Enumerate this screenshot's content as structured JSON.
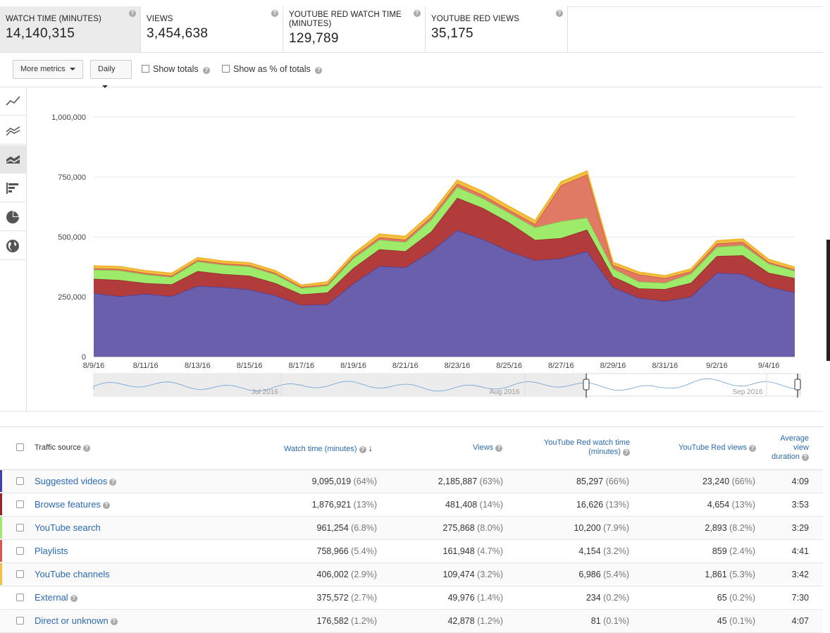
{
  "cards": [
    {
      "title": "WATCH TIME (MINUTES)",
      "value": "14,140,315"
    },
    {
      "title": "VIEWS",
      "value": "3,454,638"
    },
    {
      "title": "YOUTUBE RED WATCH TIME (MINUTES)",
      "value": "129,789"
    },
    {
      "title": "YOUTUBE RED VIEWS",
      "value": "35,175"
    }
  ],
  "toolbar": {
    "more_metrics": "More metrics",
    "interval": "Daily",
    "show_totals": "Show totals",
    "show_pct": "Show as % of totals"
  },
  "colors": {
    "suggested": "#6a5fad",
    "browse": "#b23b3b",
    "search": "#9eea6a",
    "playlists": "#e07a65",
    "channels": "#f2c042",
    "external": "#dddddd",
    "direct": "#dddddd"
  },
  "chart_data": {
    "type": "area",
    "stacked": true,
    "x": [
      "8/9/16",
      "8/10/16",
      "8/11/16",
      "8/12/16",
      "8/13/16",
      "8/14/16",
      "8/15/16",
      "8/16/16",
      "8/17/16",
      "8/18/16",
      "8/19/16",
      "8/20/16",
      "8/21/16",
      "8/22/16",
      "8/23/16",
      "8/24/16",
      "8/25/16",
      "8/26/16",
      "8/27/16",
      "8/28/16",
      "8/29/16",
      "8/30/16",
      "8/31/16",
      "9/1/16",
      "9/2/16",
      "9/3/16",
      "9/4/16",
      "9/5/16"
    ],
    "x_ticks": [
      "8/9/16",
      "8/11/16",
      "8/13/16",
      "8/15/16",
      "8/17/16",
      "8/19/16",
      "8/21/16",
      "8/23/16",
      "8/25/16",
      "8/27/16",
      "8/29/16",
      "8/31/16",
      "9/2/16",
      "9/4/16"
    ],
    "y_ticks": [
      "0",
      "250,000",
      "500,000",
      "750,000",
      "1,000,000"
    ],
    "ylim": [
      0,
      1000000
    ],
    "series": [
      {
        "name": "Suggested videos",
        "values": [
          265000,
          252000,
          262000,
          252000,
          295000,
          290000,
          280000,
          255000,
          215000,
          218000,
          305000,
          378000,
          372000,
          440000,
          528000,
          490000,
          440000,
          402000,
          410000,
          440000,
          290000,
          245000,
          232000,
          250000,
          350000,
          345000,
          292000,
          268000
        ]
      },
      {
        "name": "Browse features",
        "values": [
          60000,
          68000,
          45000,
          50000,
          62000,
          55000,
          58000,
          52000,
          45000,
          50000,
          65000,
          70000,
          68000,
          82000,
          135000,
          130000,
          120000,
          85000,
          85000,
          90000,
          45000,
          40000,
          50000,
          58000,
          70000,
          78000,
          58000,
          60000
        ]
      },
      {
        "name": "YouTube search",
        "values": [
          38000,
          40000,
          36000,
          30000,
          40000,
          38000,
          38000,
          36000,
          26000,
          28000,
          40000,
          40000,
          38000,
          50000,
          45000,
          40000,
          40000,
          52000,
          70000,
          50000,
          33000,
          28000,
          26000,
          38000,
          38000,
          42000,
          38000,
          30000
        ]
      },
      {
        "name": "Playlists",
        "values": [
          6000,
          6000,
          6000,
          6000,
          6000,
          6000,
          6000,
          6000,
          5000,
          6000,
          8000,
          10000,
          10000,
          12000,
          14000,
          14000,
          12000,
          14000,
          150000,
          180000,
          14000,
          30000,
          20000,
          10000,
          14000,
          14000,
          6000,
          6000
        ]
      },
      {
        "name": "YouTube channels",
        "values": [
          10000,
          10000,
          10000,
          10000,
          10000,
          10000,
          10000,
          10000,
          8000,
          10000,
          12000,
          14000,
          14000,
          14000,
          15000,
          15000,
          15000,
          15000,
          15000,
          15000,
          12000,
          10000,
          10000,
          10000,
          12000,
          12000,
          12000,
          10000
        ]
      }
    ],
    "navigator_labels": [
      "Jul 2016",
      "Aug 2016",
      "Sep 2016"
    ]
  },
  "table": {
    "headers": {
      "source": "Traffic source",
      "watch": "Watch time (minutes)",
      "views": "Views",
      "red_watch": "YouTube Red watch time (minutes)",
      "red_views": "YouTube Red views",
      "avg": "Average view duration"
    },
    "rows": [
      {
        "name": "Suggested videos",
        "color": "#3f3fb0",
        "watch": "9,095,019",
        "watch_pct": "(64%)",
        "views": "2,185,887",
        "views_pct": "(63%)",
        "red_watch": "85,297",
        "red_watch_pct": "(66%)",
        "red_views": "23,240",
        "red_views_pct": "(66%)",
        "avg": "4:09"
      },
      {
        "name": "Browse features",
        "color": "#9b2222",
        "watch": "1,876,921",
        "watch_pct": "(13%)",
        "views": "481,408",
        "views_pct": "(14%)",
        "red_watch": "16,626",
        "red_watch_pct": "(13%)",
        "red_views": "4,654",
        "red_views_pct": "(13%)",
        "avg": "3:53"
      },
      {
        "name": "YouTube search",
        "color": "#9eea6a",
        "watch": "961,254",
        "watch_pct": "(6.8%)",
        "views": "275,868",
        "views_pct": "(8.0%)",
        "red_watch": "10,200",
        "red_watch_pct": "(7.9%)",
        "red_views": "2,893",
        "red_views_pct": "(8.2%)",
        "avg": "3:29"
      },
      {
        "name": "Playlists",
        "color": "#d95a4a",
        "watch": "758,966",
        "watch_pct": "(5.4%)",
        "views": "161,948",
        "views_pct": "(4.7%)",
        "red_watch": "4,154",
        "red_watch_pct": "(3.2%)",
        "red_views": "859",
        "red_views_pct": "(2.4%)",
        "avg": "4:41"
      },
      {
        "name": "YouTube channels",
        "color": "#f2c042",
        "watch": "406,002",
        "watch_pct": "(2.9%)",
        "views": "109,474",
        "views_pct": "(3.2%)",
        "red_watch": "6,986",
        "red_watch_pct": "(5.4%)",
        "red_views": "1,861",
        "red_views_pct": "(5.3%)",
        "avg": "3:42"
      },
      {
        "name": "External",
        "color": "",
        "watch": "375,572",
        "watch_pct": "(2.7%)",
        "views": "49,976",
        "views_pct": "(1.4%)",
        "red_watch": "234",
        "red_watch_pct": "(0.2%)",
        "red_views": "65",
        "red_views_pct": "(0.2%)",
        "avg": "7:30"
      },
      {
        "name": "Direct or unknown",
        "color": "",
        "watch": "176,582",
        "watch_pct": "(1.2%)",
        "views": "42,878",
        "views_pct": "(1.2%)",
        "red_watch": "81",
        "red_watch_pct": "(0.1%)",
        "red_views": "45",
        "red_views_pct": "(0.1%)",
        "avg": "4:07"
      }
    ]
  }
}
